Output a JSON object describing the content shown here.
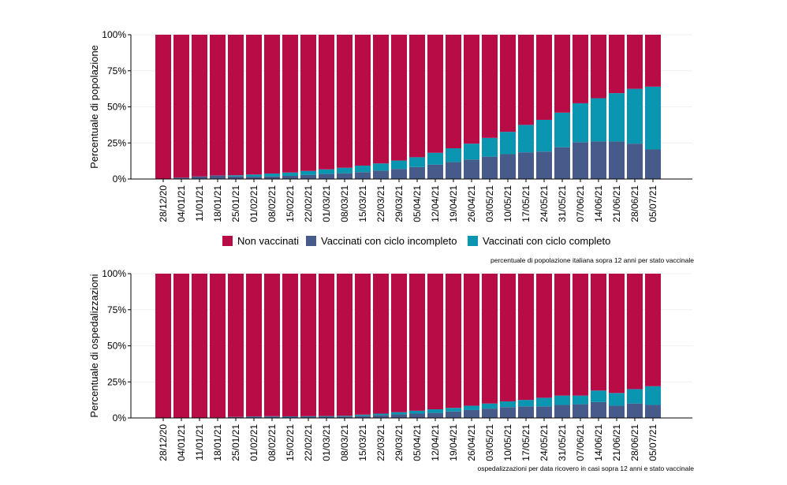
{
  "colors": {
    "non_vaccinati": "#b80c47",
    "incompleto": "#475b8a",
    "completo": "#0a95b0"
  },
  "legend": {
    "items": [
      {
        "label": "Non vaccinati",
        "color": "#b80c47"
      },
      {
        "label": "Vaccinati con ciclo incompleto",
        "color": "#475b8a"
      },
      {
        "label": "Vaccinati con ciclo completo",
        "color": "#0a95b0"
      }
    ]
  },
  "chart_data": [
    {
      "type": "bar",
      "stacked": true,
      "ylabel": "Percentuale di popolazione",
      "caption": "percentuale di popolazione italiana sopra 12 anni per stato vaccinale",
      "ylim": [
        0,
        100
      ],
      "yticks": [
        "0%",
        "25%",
        "50%",
        "75%",
        "100%"
      ],
      "categories": [
        "28/12/20",
        "04/01/21",
        "11/01/21",
        "18/01/21",
        "25/01/21",
        "01/02/21",
        "08/02/21",
        "15/02/21",
        "22/02/21",
        "01/03/21",
        "08/03/21",
        "15/03/21",
        "22/03/21",
        "29/03/21",
        "05/04/21",
        "12/04/21",
        "19/04/21",
        "26/04/21",
        "03/05/21",
        "10/05/21",
        "17/05/21",
        "24/05/21",
        "31/05/21",
        "07/06/21",
        "14/06/21",
        "21/06/21",
        "28/06/21",
        "05/07/21"
      ],
      "series": [
        {
          "name": "Vaccinati con ciclo incompleto",
          "values": [
            0.2,
            1.0,
            1.8,
            2.2,
            1.8,
            1.6,
            1.8,
            2.2,
            2.8,
            3.5,
            4.0,
            4.8,
            5.8,
            7.0,
            8.3,
            10.0,
            11.8,
            13.5,
            15.5,
            17.2,
            18.5,
            19.0,
            22.0,
            25.5,
            26.0,
            26.0,
            24.5,
            20.5
          ]
        },
        {
          "name": "Vaccinati con ciclo completo",
          "values": [
            0.0,
            0.0,
            0.0,
            0.2,
            0.8,
            1.5,
            2.0,
            2.3,
            2.8,
            3.2,
            3.8,
            4.5,
            5.0,
            5.8,
            6.8,
            8.2,
            9.5,
            11.0,
            13.0,
            15.5,
            19.0,
            22.0,
            24.0,
            27.0,
            30.0,
            33.5,
            38.0,
            43.5
          ]
        },
        {
          "name": "Non vaccinati",
          "values": [
            99.8,
            99.0,
            98.2,
            97.6,
            97.4,
            96.9,
            96.2,
            95.5,
            94.4,
            93.3,
            92.2,
            90.7,
            89.2,
            87.2,
            84.9,
            81.8,
            78.7,
            75.5,
            71.5,
            67.3,
            62.5,
            59.0,
            54.0,
            47.5,
            44.0,
            40.5,
            37.5,
            36.0
          ]
        }
      ]
    },
    {
      "type": "bar",
      "stacked": true,
      "ylabel": "Percentuale di ospedalizzazioni",
      "caption": "ospedalizzazioni per data ricovero in casi sopra 12 anni  e stato vaccinale",
      "ylim": [
        0,
        100
      ],
      "yticks": [
        "0%",
        "25%",
        "50%",
        "75%",
        "100%"
      ],
      "categories": [
        "28/12/20",
        "04/01/21",
        "11/01/21",
        "18/01/21",
        "25/01/21",
        "01/02/21",
        "08/02/21",
        "15/02/21",
        "22/02/21",
        "01/03/21",
        "08/03/21",
        "15/03/21",
        "22/03/21",
        "29/03/21",
        "05/04/21",
        "12/04/21",
        "19/04/21",
        "26/04/21",
        "03/05/21",
        "10/05/21",
        "17/05/21",
        "24/05/21",
        "31/05/21",
        "07/06/21",
        "14/06/21",
        "21/06/21",
        "28/06/21",
        "05/07/21"
      ],
      "series": [
        {
          "name": "Vaccinati con ciclo incompleto",
          "values": [
            0.0,
            0.1,
            0.2,
            0.3,
            0.6,
            1.0,
            1.0,
            0.8,
            0.8,
            0.8,
            1.0,
            1.5,
            2.0,
            2.5,
            3.0,
            3.5,
            4.5,
            5.5,
            6.5,
            7.5,
            8.0,
            8.0,
            9.0,
            9.5,
            11.0,
            8.5,
            10.0,
            9.0
          ]
        },
        {
          "name": "Vaccinati con ciclo completo",
          "values": [
            0.0,
            0.0,
            0.0,
            0.0,
            0.1,
            0.1,
            0.2,
            0.3,
            0.4,
            0.5,
            0.5,
            0.8,
            1.0,
            1.5,
            2.0,
            2.5,
            2.5,
            3.0,
            3.5,
            4.0,
            4.5,
            6.0,
            6.5,
            6.0,
            8.0,
            8.8,
            10.0,
            13.0
          ]
        },
        {
          "name": "Non vaccinati",
          "values": [
            100.0,
            99.9,
            99.8,
            99.7,
            99.3,
            98.9,
            98.8,
            98.9,
            98.8,
            98.7,
            98.5,
            97.7,
            97.0,
            96.0,
            95.0,
            94.0,
            93.0,
            91.5,
            90.0,
            88.5,
            87.5,
            86.0,
            84.5,
            84.5,
            81.0,
            82.7,
            80.0,
            78.0
          ]
        }
      ]
    }
  ]
}
